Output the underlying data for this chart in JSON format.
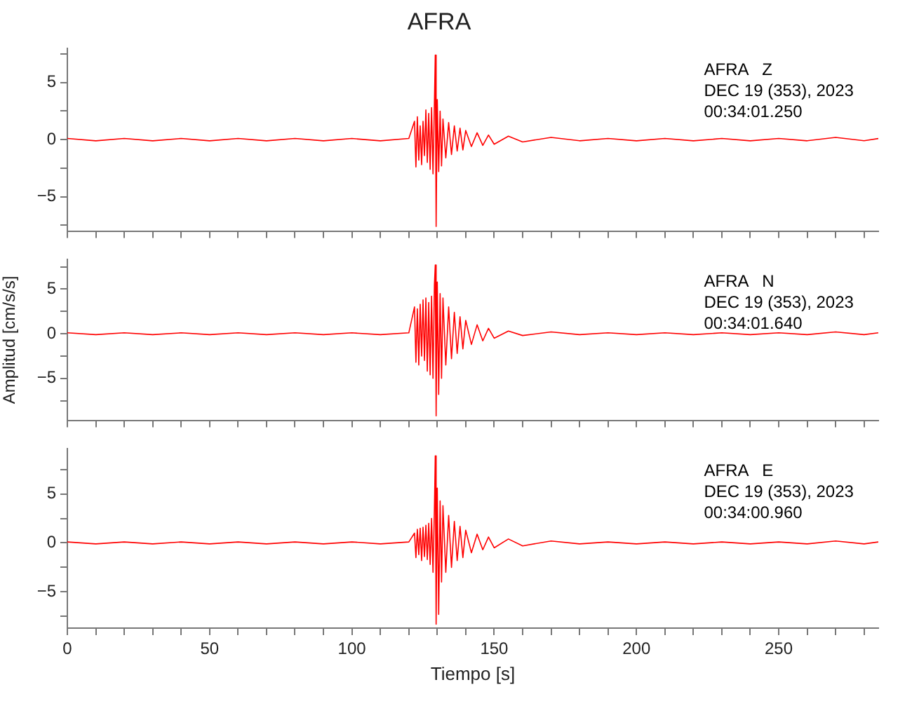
{
  "chart_data": [
    {
      "type": "line",
      "title": "AFRA",
      "annotations": [
        "AFRA   Z",
        "DEC 19 (353), 2023",
        "00:34:01.250"
      ],
      "tick_labels": "y",
      "x": [
        0,
        10,
        20,
        30,
        40,
        50,
        60,
        70,
        80,
        90,
        100,
        110,
        120,
        122,
        122.5,
        123,
        123.5,
        124,
        124.5,
        125,
        125.5,
        126,
        126.5,
        127,
        127.5,
        128,
        128.5,
        129,
        129.3,
        129.6,
        130,
        130.5,
        131,
        131.5,
        132,
        133,
        134,
        135,
        136,
        137,
        138,
        139,
        140,
        142,
        144,
        146,
        148,
        150,
        155,
        160,
        170,
        180,
        190,
        200,
        210,
        220,
        230,
        240,
        250,
        260,
        270,
        280,
        285
      ],
      "series": [
        {
          "color": "#ff0000",
          "values": [
            0.1,
            -0.1,
            0.1,
            -0.1,
            0.1,
            -0.1,
            0.1,
            -0.1,
            0.1,
            -0.1,
            0.1,
            -0.1,
            0.1,
            1.6,
            -2.4,
            2.0,
            -1.8,
            1.2,
            -2.2,
            1.6,
            -1.4,
            2.6,
            -2.0,
            2.3,
            -2.6,
            2.8,
            -3.0,
            3.2,
            7.4,
            -7.6,
            3.5,
            -2.8,
            2.5,
            -2.3,
            1.8,
            -1.6,
            1.5,
            -1.3,
            1.2,
            -1.0,
            1.0,
            -0.9,
            0.8,
            -0.6,
            0.6,
            -0.5,
            0.4,
            -0.4,
            0.3,
            -0.2,
            0.2,
            -0.1,
            0.1,
            -0.1,
            0.1,
            -0.1,
            0.1,
            -0.1,
            0.1,
            -0.1,
            0.2,
            -0.1,
            0.1
          ]
        }
      ],
      "xlim": [
        0,
        285
      ],
      "xticks": [
        0,
        {
          "value": 10,
          "label": null
        },
        {
          "value": 20,
          "label": null
        },
        {
          "value": 30,
          "label": null
        },
        {
          "value": 40,
          "label": null
        },
        50,
        {
          "value": 60,
          "label": null
        },
        {
          "value": 70,
          "label": null
        },
        {
          "value": 80,
          "label": null
        },
        {
          "value": 90,
          "label": null
        },
        100,
        {
          "value": 110,
          "label": null
        },
        {
          "value": 120,
          "label": null
        },
        {
          "value": 130,
          "label": null
        },
        {
          "value": 140,
          "label": null
        },
        150,
        {
          "value": 160,
          "label": null
        },
        {
          "value": 170,
          "label": null
        },
        {
          "value": 180,
          "label": null
        },
        {
          "value": 190,
          "label": null
        },
        200,
        {
          "value": 210,
          "label": null
        },
        {
          "value": 220,
          "label": null
        },
        {
          "value": 230,
          "label": null
        },
        {
          "value": 240,
          "label": null
        },
        250,
        {
          "value": 260,
          "label": null
        },
        {
          "value": 270,
          "label": null
        },
        {
          "value": 280,
          "label": null
        }
      ],
      "ylim": [
        -8,
        8
      ],
      "yticks": [
        {
          "value": -7.5,
          "label": null
        },
        -5,
        {
          "value": -2.5,
          "label": null
        },
        0,
        {
          "value": 2.5,
          "label": null
        },
        5,
        {
          "value": 7.5,
          "label": null
        }
      ]
    },
    {
      "type": "line",
      "ylabel": "Amplitud [cm/s/s]",
      "annotations": [
        "AFRA   N",
        "DEC 19 (353), 2023",
        "00:34:01.640"
      ],
      "tick_labels": "y",
      "x": [
        0,
        10,
        20,
        30,
        40,
        50,
        60,
        70,
        80,
        90,
        100,
        110,
        120,
        122,
        122.5,
        123,
        123.5,
        124,
        124.5,
        125,
        125.5,
        126,
        126.5,
        127,
        127.5,
        128,
        128.5,
        129,
        129.3,
        129.6,
        130,
        130.5,
        131,
        131.5,
        132,
        133,
        134,
        135,
        136,
        137,
        138,
        139,
        140,
        142,
        144,
        146,
        148,
        150,
        155,
        160,
        170,
        180,
        190,
        200,
        210,
        220,
        230,
        240,
        250,
        260,
        270,
        280,
        285
      ],
      "series": [
        {
          "color": "#ff0000",
          "values": [
            0.1,
            -0.1,
            0.1,
            -0.1,
            0.1,
            -0.1,
            0.1,
            -0.1,
            0.1,
            -0.1,
            0.1,
            -0.1,
            0.1,
            3.0,
            -3.2,
            2.8,
            -3.5,
            3.3,
            -2.5,
            3.8,
            -3.0,
            4.0,
            -4.2,
            3.5,
            -4.6,
            4.2,
            -5.0,
            5.5,
            7.7,
            -9.2,
            5.8,
            -6.8,
            4.5,
            -5.0,
            4.0,
            -3.5,
            3.0,
            -2.8,
            2.4,
            -2.2,
            1.9,
            -1.7,
            1.5,
            -1.2,
            1.0,
            -0.8,
            0.6,
            -0.5,
            0.3,
            -0.2,
            0.2,
            -0.1,
            0.1,
            -0.1,
            0.1,
            -0.1,
            0.1,
            -0.1,
            0.1,
            -0.1,
            0.2,
            -0.1,
            0.1
          ]
        }
      ],
      "xlim": [
        0,
        285
      ],
      "xticks": [
        0,
        {
          "value": 10,
          "label": null
        },
        {
          "value": 20,
          "label": null
        },
        {
          "value": 30,
          "label": null
        },
        {
          "value": 40,
          "label": null
        },
        50,
        {
          "value": 60,
          "label": null
        },
        {
          "value": 70,
          "label": null
        },
        {
          "value": 80,
          "label": null
        },
        {
          "value": 90,
          "label": null
        },
        100,
        {
          "value": 110,
          "label": null
        },
        {
          "value": 120,
          "label": null
        },
        {
          "value": 130,
          "label": null
        },
        {
          "value": 140,
          "label": null
        },
        150,
        {
          "value": 160,
          "label": null
        },
        {
          "value": 170,
          "label": null
        },
        {
          "value": 180,
          "label": null
        },
        {
          "value": 190,
          "label": null
        },
        200,
        {
          "value": 210,
          "label": null
        },
        {
          "value": 220,
          "label": null
        },
        {
          "value": 230,
          "label": null
        },
        {
          "value": 240,
          "label": null
        },
        250,
        {
          "value": 260,
          "label": null
        },
        {
          "value": 270,
          "label": null
        },
        {
          "value": 280,
          "label": null
        }
      ],
      "ylim": [
        -9.7,
        8.3
      ],
      "yticks": [
        {
          "value": -7.5,
          "label": null
        },
        -5,
        {
          "value": -2.5,
          "label": null
        },
        0,
        {
          "value": 2.5,
          "label": null
        },
        5,
        {
          "value": 7.5,
          "label": null
        }
      ]
    },
    {
      "type": "line",
      "xlabel": "Tiempo [s]",
      "annotations": [
        "AFRA   E",
        "DEC 19 (353), 2023",
        "00:34:00.960"
      ],
      "x": [
        0,
        10,
        20,
        30,
        40,
        50,
        60,
        70,
        80,
        90,
        100,
        110,
        120,
        122,
        122.5,
        123,
        123.5,
        124,
        124.5,
        125,
        125.5,
        126,
        126.5,
        127,
        127.5,
        128,
        128.5,
        129,
        129.3,
        129.6,
        130,
        130.5,
        131,
        131.5,
        132,
        133,
        134,
        135,
        136,
        137,
        138,
        139,
        140,
        142,
        144,
        146,
        148,
        150,
        155,
        160,
        170,
        180,
        190,
        200,
        210,
        220,
        230,
        240,
        250,
        260,
        270,
        280,
        285
      ],
      "series": [
        {
          "color": "#ff0000",
          "values": [
            0.1,
            -0.1,
            0.1,
            -0.1,
            0.1,
            -0.1,
            0.1,
            -0.1,
            0.1,
            -0.1,
            0.1,
            -0.1,
            0.1,
            1.0,
            -1.5,
            1.4,
            -1.2,
            1.5,
            -1.8,
            1.6,
            -1.4,
            1.8,
            -1.7,
            2.0,
            -2.2,
            2.5,
            -3.0,
            3.5,
            8.9,
            -8.3,
            5.6,
            -7.3,
            4.3,
            -4.0,
            3.8,
            -3.0,
            2.8,
            -2.5,
            2.2,
            -1.8,
            1.7,
            -1.5,
            1.3,
            -1.0,
            0.9,
            -0.7,
            0.6,
            -0.5,
            0.4,
            -0.3,
            0.2,
            -0.1,
            0.1,
            -0.1,
            0.1,
            -0.1,
            0.1,
            -0.1,
            0.1,
            -0.1,
            0.2,
            -0.1,
            0.1
          ]
        }
      ],
      "xlim": [
        0,
        285
      ],
      "xticks": [
        0,
        {
          "value": 10,
          "label": null
        },
        {
          "value": 20,
          "label": null
        },
        {
          "value": 30,
          "label": null
        },
        {
          "value": 40,
          "label": null
        },
        50,
        {
          "value": 60,
          "label": null
        },
        {
          "value": 70,
          "label": null
        },
        {
          "value": 80,
          "label": null
        },
        {
          "value": 90,
          "label": null
        },
        100,
        {
          "value": 110,
          "label": null
        },
        {
          "value": 120,
          "label": null
        },
        {
          "value": 130,
          "label": null
        },
        {
          "value": 140,
          "label": null
        },
        150,
        {
          "value": 160,
          "label": null
        },
        {
          "value": 170,
          "label": null
        },
        {
          "value": 180,
          "label": null
        },
        {
          "value": 190,
          "label": null
        },
        200,
        {
          "value": 210,
          "label": null
        },
        {
          "value": 220,
          "label": null
        },
        {
          "value": 230,
          "label": null
        },
        {
          "value": 240,
          "label": null
        },
        250,
        {
          "value": 260,
          "label": null
        },
        {
          "value": 270,
          "label": null
        },
        {
          "value": 280,
          "label": null
        }
      ],
      "ylim": [
        -8.7,
        9.6
      ],
      "yticks": [
        {
          "value": -7.5,
          "label": null
        },
        -5,
        {
          "value": -2.5,
          "label": null
        },
        0,
        {
          "value": 2.5,
          "label": null
        },
        5,
        {
          "value": 7.5,
          "label": null
        }
      ]
    }
  ]
}
